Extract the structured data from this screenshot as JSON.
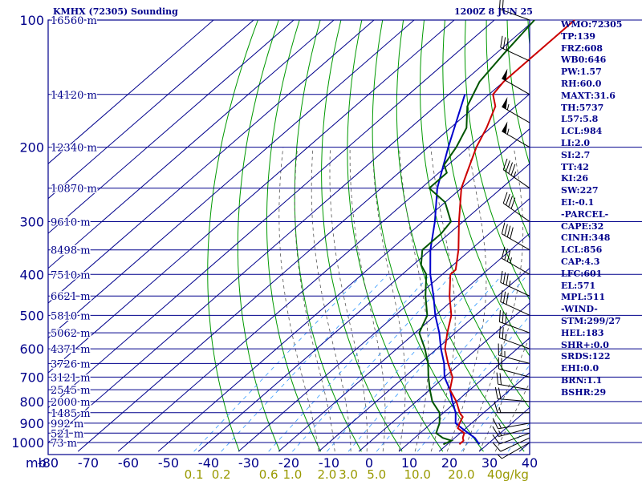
{
  "header": {
    "title": "KMHX (72305) Sounding",
    "datetime": "1200Z  8 JUN 25"
  },
  "indices": [
    "WMO:72305",
    "TP:139",
    "FRZ:608",
    "WB0:646",
    "PW:1.57",
    "RH:60.0",
    "MAXT:31.6",
    "TH:5737",
    "L57:5.8",
    "LCL:984",
    "LI:2.0",
    "SI:2.7",
    "TT:42",
    "KI:26",
    "SW:227",
    "EI:-0.1",
    "-PARCEL-",
    "CAPE:32",
    "CINH:348",
    "LCL:856",
    "CAP:4.3",
    "LFC:601",
    "EL:571",
    "MPL:511",
    "-WIND-",
    "STM:299/27",
    "HEL:183",
    "SHR+:0.0",
    "SRDS:122",
    "EHI:0.0",
    "BRN:1.1",
    "BSHR:29"
  ],
  "colors": {
    "frame": "#00008b",
    "isotherm": "#00008b",
    "dry_adiabat": "#009900",
    "moist_adiabat": "#555555",
    "mixing_ratio": "#3399ff",
    "temperature": "#cc0000",
    "dewpoint": "#005500",
    "parcel": "#0000cc",
    "mixing_label": "#999900",
    "axis_text": "#00008b"
  },
  "chart_data": {
    "type": "skew-t",
    "y_axis": {
      "unit_label": "mb",
      "pressure_ticks": [
        100,
        200,
        300,
        400,
        500,
        600,
        700,
        800,
        900,
        1000
      ],
      "ylim": [
        100,
        1050
      ]
    },
    "x_axis": {
      "temperature_ticks": [
        -80,
        -70,
        -60,
        -50,
        -40,
        -30,
        -20,
        -10,
        0,
        10,
        20,
        30,
        40
      ],
      "xlim": [
        -80,
        40
      ]
    },
    "height_labels": [
      {
        "p": 100,
        "label": "16560 m"
      },
      {
        "p": 150,
        "label": "14120 m"
      },
      {
        "p": 200,
        "label": "12340 m"
      },
      {
        "p": 250,
        "label": "10870 m"
      },
      {
        "p": 300,
        "label": "9610 m"
      },
      {
        "p": 350,
        "label": "8498 m"
      },
      {
        "p": 400,
        "label": "7510 m"
      },
      {
        "p": 450,
        "label": "6621 m"
      },
      {
        "p": 500,
        "label": "5810 m"
      },
      {
        "p": 550,
        "label": "5062 m"
      },
      {
        "p": 600,
        "label": "4371 m"
      },
      {
        "p": 650,
        "label": "3726 m"
      },
      {
        "p": 700,
        "label": "3121 m"
      },
      {
        "p": 750,
        "label": "2545 m"
      },
      {
        "p": 800,
        "label": "2000 m"
      },
      {
        "p": 850,
        "label": "1485 m"
      },
      {
        "p": 900,
        "label": "992 m"
      },
      {
        "p": 950,
        "label": "521 m"
      },
      {
        "p": 1000,
        "label": "73 m"
      }
    ],
    "mixing_ratio_labels": [
      "0.1",
      "0.2",
      "0.6",
      "1.0",
      "2.0",
      "3.0",
      "5.0",
      "10.0",
      "20.0",
      "40g/kg"
    ],
    "mixing_ratio_values": [
      0.1,
      0.2,
      0.6,
      1.0,
      2.0,
      3.0,
      5.0,
      10.0,
      20.0,
      40.0
    ],
    "temperature": [
      {
        "p": 1010,
        "t": 23
      },
      {
        "p": 990,
        "t": 23
      },
      {
        "p": 975,
        "t": 22
      },
      {
        "p": 950,
        "t": 21
      },
      {
        "p": 925,
        "t": 18
      },
      {
        "p": 900,
        "t": 17
      },
      {
        "p": 870,
        "t": 16
      },
      {
        "p": 850,
        "t": 14
      },
      {
        "p": 800,
        "t": 10
      },
      {
        "p": 750,
        "t": 5
      },
      {
        "p": 700,
        "t": 2
      },
      {
        "p": 650,
        "t": -3
      },
      {
        "p": 600,
        "t": -8
      },
      {
        "p": 550,
        "t": -12
      },
      {
        "p": 500,
        "t": -16
      },
      {
        "p": 450,
        "t": -22
      },
      {
        "p": 400,
        "t": -28
      },
      {
        "p": 390,
        "t": -28
      },
      {
        "p": 350,
        "t": -33
      },
      {
        "p": 300,
        "t": -41
      },
      {
        "p": 250,
        "t": -50
      },
      {
        "p": 230,
        "t": -53
      },
      {
        "p": 200,
        "t": -58
      },
      {
        "p": 180,
        "t": -61
      },
      {
        "p": 160,
        "t": -65
      },
      {
        "p": 150,
        "t": -69
      },
      {
        "p": 140,
        "t": -70
      },
      {
        "p": 130,
        "t": -70
      },
      {
        "p": 110,
        "t": -70
      },
      {
        "p": 100,
        "t": -70
      }
    ],
    "dewpoint": [
      {
        "p": 1010,
        "t": 19
      },
      {
        "p": 990,
        "t": 20
      },
      {
        "p": 975,
        "t": 17
      },
      {
        "p": 950,
        "t": 14
      },
      {
        "p": 925,
        "t": 13
      },
      {
        "p": 900,
        "t": 12
      },
      {
        "p": 850,
        "t": 9
      },
      {
        "p": 800,
        "t": 4
      },
      {
        "p": 750,
        "t": 0
      },
      {
        "p": 700,
        "t": -4
      },
      {
        "p": 650,
        "t": -8
      },
      {
        "p": 600,
        "t": -13
      },
      {
        "p": 550,
        "t": -19
      },
      {
        "p": 500,
        "t": -22
      },
      {
        "p": 450,
        "t": -28
      },
      {
        "p": 400,
        "t": -34
      },
      {
        "p": 380,
        "t": -38
      },
      {
        "p": 350,
        "t": -42
      },
      {
        "p": 320,
        "t": -42
      },
      {
        "p": 300,
        "t": -43
      },
      {
        "p": 270,
        "t": -50
      },
      {
        "p": 250,
        "t": -58
      },
      {
        "p": 230,
        "t": -58
      },
      {
        "p": 220,
        "t": -61
      },
      {
        "p": 200,
        "t": -63
      },
      {
        "p": 180,
        "t": -66
      },
      {
        "p": 160,
        "t": -72
      },
      {
        "p": 140,
        "t": -76
      },
      {
        "p": 120,
        "t": -78
      },
      {
        "p": 100,
        "t": -80
      }
    ],
    "parcel": [
      {
        "p": 1010,
        "t": 28
      },
      {
        "p": 975,
        "t": 25
      },
      {
        "p": 950,
        "t": 22
      },
      {
        "p": 925,
        "t": 19
      },
      {
        "p": 900,
        "t": 16
      },
      {
        "p": 850,
        "t": 13
      },
      {
        "p": 800,
        "t": 9
      },
      {
        "p": 750,
        "t": 5
      },
      {
        "p": 700,
        "t": 0
      },
      {
        "p": 650,
        "t": -4
      },
      {
        "p": 600,
        "t": -9
      },
      {
        "p": 550,
        "t": -14
      },
      {
        "p": 500,
        "t": -20
      },
      {
        "p": 450,
        "t": -26
      },
      {
        "p": 400,
        "t": -33
      },
      {
        "p": 350,
        "t": -40
      },
      {
        "p": 300,
        "t": -47
      },
      {
        "p": 250,
        "t": -56
      },
      {
        "p": 200,
        "t": -65
      },
      {
        "p": 150,
        "t": -76
      }
    ],
    "wind_barbs": [
      {
        "p": 1000,
        "dir": 240,
        "spd": 5
      },
      {
        "p": 975,
        "dir": 245,
        "spd": 10
      },
      {
        "p": 950,
        "dir": 250,
        "spd": 10
      },
      {
        "p": 925,
        "dir": 255,
        "spd": 15
      },
      {
        "p": 900,
        "dir": 260,
        "spd": 15
      },
      {
        "p": 850,
        "dir": 270,
        "spd": 15
      },
      {
        "p": 800,
        "dir": 275,
        "spd": 20
      },
      {
        "p": 750,
        "dir": 280,
        "spd": 20
      },
      {
        "p": 700,
        "dir": 285,
        "spd": 20
      },
      {
        "p": 650,
        "dir": 285,
        "spd": 25
      },
      {
        "p": 600,
        "dir": 290,
        "spd": 25
      },
      {
        "p": 550,
        "dir": 290,
        "spd": 30
      },
      {
        "p": 500,
        "dir": 295,
        "spd": 30
      },
      {
        "p": 450,
        "dir": 295,
        "spd": 35
      },
      {
        "p": 400,
        "dir": 300,
        "spd": 35
      },
      {
        "p": 350,
        "dir": 300,
        "spd": 40
      },
      {
        "p": 300,
        "dir": 305,
        "spd": 40
      },
      {
        "p": 250,
        "dir": 305,
        "spd": 45
      },
      {
        "p": 200,
        "dir": 300,
        "spd": 55
      },
      {
        "p": 175,
        "dir": 300,
        "spd": 55
      },
      {
        "p": 150,
        "dir": 300,
        "spd": 50
      },
      {
        "p": 125,
        "dir": 295,
        "spd": 30
      },
      {
        "p": 100,
        "dir": 290,
        "spd": 20
      }
    ]
  }
}
